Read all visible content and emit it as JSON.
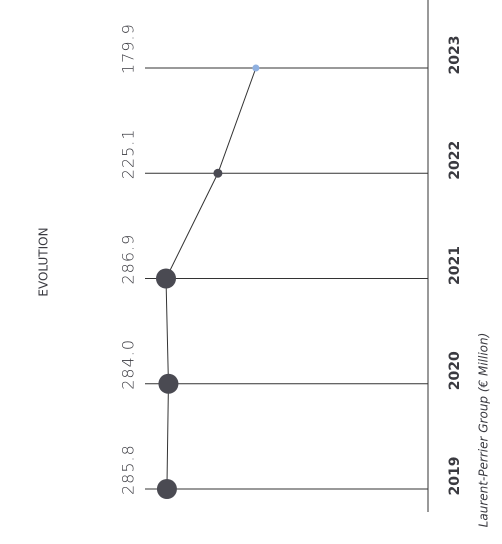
{
  "chart_data": {
    "type": "lollipop-line",
    "title": "EVOLUTION",
    "source": "Laurent-Perrier Group (€ Million)",
    "categories": [
      "2019",
      "2020",
      "2021",
      "2022",
      "2023"
    ],
    "values": [
      285.8,
      284.0,
      286.9,
      225.1,
      179.9
    ],
    "value_labels": [
      "285.8",
      "284.0",
      "286.9",
      "225.1",
      "179.9"
    ],
    "point_colors": [
      "#4a4a52",
      "#4a4a52",
      "#4a4a52",
      "#4a4a52",
      "#8fb0e0"
    ],
    "marker_sizes": [
      10,
      10,
      10,
      4.5,
      3.5
    ],
    "ylim": [
      -25,
      300
    ]
  }
}
